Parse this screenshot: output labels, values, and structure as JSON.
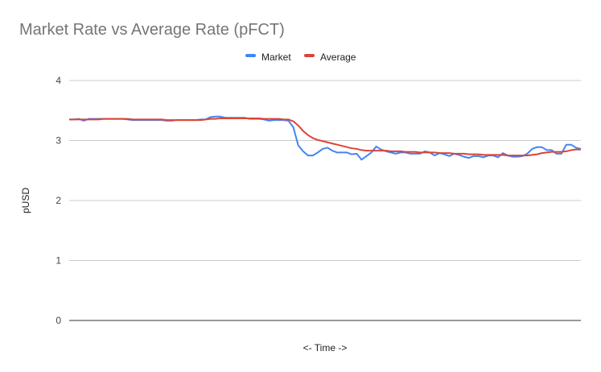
{
  "chart_data": {
    "type": "line",
    "title": "Market Rate vs Average Rate (pFCT)",
    "xlabel": "<- Time ->",
    "ylabel": "pUSD",
    "ylim": [
      0,
      4
    ],
    "yticks": [
      "0",
      "1",
      "2",
      "3",
      "4"
    ],
    "grid": true,
    "legend_position": "top",
    "series": [
      {
        "name": "Market",
        "color": "#4285f4",
        "values": [
          3.35,
          3.35,
          3.36,
          3.33,
          3.36,
          3.36,
          3.36,
          3.36,
          3.36,
          3.36,
          3.36,
          3.36,
          3.35,
          3.34,
          3.34,
          3.34,
          3.34,
          3.34,
          3.34,
          3.34,
          3.33,
          3.33,
          3.34,
          3.34,
          3.34,
          3.34,
          3.34,
          3.35,
          3.35,
          3.39,
          3.4,
          3.4,
          3.38,
          3.38,
          3.38,
          3.38,
          3.38,
          3.36,
          3.36,
          3.36,
          3.35,
          3.33,
          3.34,
          3.34,
          3.34,
          3.33,
          3.22,
          2.92,
          2.82,
          2.75,
          2.75,
          2.8,
          2.86,
          2.88,
          2.83,
          2.8,
          2.8,
          2.8,
          2.77,
          2.78,
          2.68,
          2.74,
          2.8,
          2.9,
          2.85,
          2.82,
          2.8,
          2.78,
          2.8,
          2.8,
          2.78,
          2.78,
          2.78,
          2.82,
          2.8,
          2.75,
          2.79,
          2.77,
          2.74,
          2.78,
          2.76,
          2.73,
          2.71,
          2.74,
          2.74,
          2.72,
          2.75,
          2.75,
          2.72,
          2.79,
          2.75,
          2.73,
          2.73,
          2.74,
          2.78,
          2.86,
          2.89,
          2.89,
          2.84,
          2.84,
          2.78,
          2.78,
          2.93,
          2.93,
          2.88,
          2.86
        ]
      },
      {
        "name": "Average",
        "color": "#db4437",
        "values": [
          3.35,
          3.35,
          3.35,
          3.35,
          3.35,
          3.35,
          3.35,
          3.36,
          3.36,
          3.36,
          3.36,
          3.36,
          3.36,
          3.35,
          3.35,
          3.35,
          3.35,
          3.35,
          3.35,
          3.35,
          3.34,
          3.34,
          3.34,
          3.34,
          3.34,
          3.34,
          3.34,
          3.34,
          3.35,
          3.36,
          3.36,
          3.37,
          3.37,
          3.37,
          3.37,
          3.37,
          3.37,
          3.37,
          3.37,
          3.37,
          3.36,
          3.36,
          3.36,
          3.36,
          3.35,
          3.35,
          3.32,
          3.25,
          3.16,
          3.09,
          3.04,
          3.01,
          2.99,
          2.97,
          2.95,
          2.93,
          2.91,
          2.89,
          2.87,
          2.86,
          2.84,
          2.83,
          2.83,
          2.83,
          2.83,
          2.83,
          2.82,
          2.82,
          2.82,
          2.81,
          2.81,
          2.81,
          2.8,
          2.8,
          2.8,
          2.8,
          2.79,
          2.79,
          2.79,
          2.78,
          2.78,
          2.78,
          2.77,
          2.77,
          2.77,
          2.76,
          2.76,
          2.76,
          2.76,
          2.76,
          2.75,
          2.75,
          2.75,
          2.75,
          2.75,
          2.76,
          2.77,
          2.79,
          2.8,
          2.81,
          2.81,
          2.81,
          2.82,
          2.84,
          2.85,
          2.85
        ]
      }
    ]
  }
}
